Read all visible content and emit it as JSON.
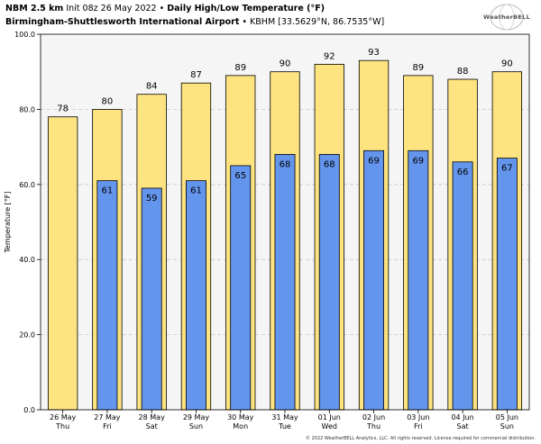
{
  "header": {
    "line1_model": "NBM 2.5 km",
    "line1_init": "Init 08z 26 May 2022",
    "line1_bullet": "•",
    "line1_title": "Daily High/Low Temperature (°F)",
    "line2_station": "Birmingham-Shuttlesworth International Airport",
    "line2_bullet": "•",
    "line2_coords": "KBHM [33.5629°N, 86.7535°W]"
  },
  "logo": {
    "text": "WeatherBELL"
  },
  "copyright": "© 2022 WeatherBELL Analytics, LLC. All rights reserved. License required for commercial distribution.",
  "colors": {
    "high_fill": "#fee480",
    "low_fill": "#6495ed",
    "plot_bg": "#f5f5f5",
    "grid": "#c8c8c8"
  },
  "chart_data": {
    "type": "bar",
    "title": "Daily High/Low Temperature (°F)",
    "ylabel": "Temperature [°F]",
    "ylim": [
      0,
      100
    ],
    "yticks": [
      "0.0",
      "20.0",
      "40.0",
      "60.0",
      "80.0",
      "100.0"
    ],
    "ytick_values": [
      0,
      20,
      40,
      60,
      80,
      100
    ],
    "grid": true,
    "categories": [
      {
        "date": "26 May",
        "day": "Thu"
      },
      {
        "date": "27 May",
        "day": "Fri"
      },
      {
        "date": "28 May",
        "day": "Sat"
      },
      {
        "date": "29 May",
        "day": "Sun"
      },
      {
        "date": "30 May",
        "day": "Mon"
      },
      {
        "date": "31 May",
        "day": "Tue"
      },
      {
        "date": "01 Jun",
        "day": "Wed"
      },
      {
        "date": "02 Jun",
        "day": "Thu"
      },
      {
        "date": "03 Jun",
        "day": "Fri"
      },
      {
        "date": "04 Jun",
        "day": "Sat"
      },
      {
        "date": "05 Jun",
        "day": "Sun"
      }
    ],
    "series": [
      {
        "key": "high",
        "values": [
          78,
          80,
          84,
          87,
          89,
          90,
          92,
          93,
          89,
          88,
          90
        ]
      },
      {
        "key": "low",
        "values": [
          null,
          61,
          59,
          61,
          65,
          68,
          68,
          69,
          69,
          66,
          67
        ]
      }
    ]
  }
}
